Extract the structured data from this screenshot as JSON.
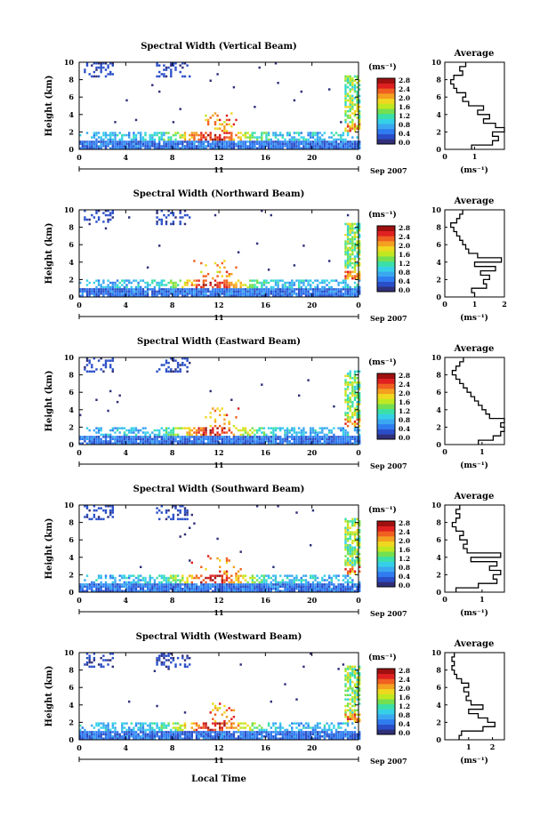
{
  "figure": {
    "xlabel": "Local Time",
    "date_label": "Sep 2007",
    "day_label": "11",
    "unit_label": "(ms⁻¹)",
    "avg_title": "Average",
    "avg_xlabel": "(ms⁻¹)",
    "ylabel": "Height (km)"
  },
  "colorbar": {
    "colors": [
      "#30307a",
      "#2a4ec8",
      "#2f7bf0",
      "#3aa8f0",
      "#35d0e8",
      "#3ae0a8",
      "#74e050",
      "#c0e820",
      "#f0d820",
      "#f4a020",
      "#f06020",
      "#e02020",
      "#a01010"
    ],
    "ticks": [
      "0.0",
      "0.4",
      "0.8",
      "1.2",
      "1.6",
      "2.0",
      "2.4",
      "2.8"
    ],
    "range": [
      0,
      2.8
    ]
  },
  "chart_data": [
    {
      "type": "heatmap",
      "title": "Spectral Width (Vertical Beam)",
      "x_ticks": [
        "0",
        "4",
        "8",
        "12",
        "16",
        "20",
        "0"
      ],
      "xlim": [
        0,
        24
      ],
      "y_ticks": [
        "0",
        "2",
        "4",
        "6",
        "8",
        "10"
      ],
      "ylim": [
        0,
        10
      ],
      "avg": {
        "x_ticks": [
          "0",
          "1"
        ],
        "xlim": [
          0,
          2
        ],
        "heights": [
          0.25,
          0.75,
          1.25,
          1.75,
          2.25,
          2.75,
          3.25,
          3.75,
          4.25,
          4.75,
          5.25,
          5.75,
          6.25,
          6.75,
          7.25,
          7.75,
          8.25,
          8.75,
          9.25,
          9.75
        ],
        "values": [
          0.9,
          1.6,
          1.8,
          1.6,
          2.0,
          1.7,
          1.3,
          1.5,
          1.1,
          1.3,
          0.8,
          0.6,
          0.7,
          0.4,
          0.3,
          0.2,
          0.3,
          0.6,
          0.5,
          0.7
        ]
      }
    },
    {
      "type": "heatmap",
      "title": "Spectral Width (Northward Beam)",
      "x_ticks": [
        "0",
        "4",
        "8",
        "12",
        "16",
        "20",
        "0"
      ],
      "xlim": [
        0,
        24
      ],
      "y_ticks": [
        "0",
        "2",
        "4",
        "6",
        "8",
        "10"
      ],
      "ylim": [
        0,
        10
      ],
      "avg": {
        "x_ticks": [
          "0",
          "1",
          "2"
        ],
        "xlim": [
          0,
          2
        ],
        "heights": [
          0.25,
          0.75,
          1.25,
          1.75,
          2.25,
          2.75,
          3.25,
          3.75,
          4.25,
          4.75,
          5.25,
          5.75,
          6.25,
          6.75,
          7.25,
          7.75,
          8.25,
          8.75,
          9.25,
          9.75
        ],
        "values": [
          1.0,
          0.9,
          1.4,
          1.3,
          1.5,
          1.2,
          1.7,
          1.0,
          1.9,
          1.1,
          0.8,
          0.7,
          0.6,
          0.5,
          0.4,
          0.3,
          0.2,
          0.4,
          0.5,
          0.6
        ]
      }
    },
    {
      "type": "heatmap",
      "title": "Spectral Width (Eastward Beam)",
      "x_ticks": [
        "0",
        "4",
        "8",
        "12",
        "16",
        "20",
        "0"
      ],
      "xlim": [
        0,
        24
      ],
      "y_ticks": [
        "0",
        "2",
        "4",
        "6",
        "8",
        "10"
      ],
      "ylim": [
        0,
        10
      ],
      "avg": {
        "x_ticks": [
          "0",
          "1"
        ],
        "xlim": [
          0,
          1.6
        ],
        "heights": [
          0.25,
          0.75,
          1.25,
          1.75,
          2.25,
          2.75,
          3.25,
          3.75,
          4.25,
          4.75,
          5.25,
          5.75,
          6.25,
          6.75,
          7.25,
          7.75,
          8.25,
          8.75,
          9.25,
          9.75
        ],
        "values": [
          0.9,
          1.3,
          1.5,
          1.6,
          1.5,
          1.6,
          1.2,
          1.1,
          1.0,
          0.9,
          0.8,
          0.7,
          0.6,
          0.5,
          0.4,
          0.3,
          0.2,
          0.3,
          0.4,
          0.5
        ]
      }
    },
    {
      "type": "heatmap",
      "title": "Spectral Width (Southward Beam)",
      "x_ticks": [
        "0",
        "4",
        "8",
        "12",
        "16",
        "20",
        "0"
      ],
      "xlim": [
        0,
        24
      ],
      "y_ticks": [
        "0",
        "2",
        "4",
        "6",
        "8",
        "10"
      ],
      "ylim": [
        0,
        10
      ],
      "avg": {
        "x_ticks": [
          "0",
          "1"
        ],
        "xlim": [
          0,
          1.6
        ],
        "heights": [
          0.25,
          0.75,
          1.25,
          1.75,
          2.25,
          2.75,
          3.25,
          3.75,
          4.25,
          4.75,
          5.25,
          5.75,
          6.25,
          6.75,
          7.25,
          7.75,
          8.25,
          8.75,
          9.25,
          9.75
        ],
        "values": [
          0.3,
          0.9,
          1.4,
          1.3,
          1.5,
          1.2,
          1.4,
          0.7,
          1.5,
          0.6,
          0.5,
          0.6,
          0.4,
          0.5,
          0.3,
          0.2,
          0.3,
          0.4,
          0.3,
          0.4
        ]
      }
    },
    {
      "type": "heatmap",
      "title": "Spectral Width (Westward Beam)",
      "x_ticks": [
        "0",
        "4",
        "8",
        "12",
        "16",
        "20",
        "0"
      ],
      "xlim": [
        0,
        24
      ],
      "y_ticks": [
        "0",
        "2",
        "4",
        "6",
        "8",
        "10"
      ],
      "ylim": [
        0,
        10
      ],
      "avg": {
        "x_ticks": [
          "1",
          "2"
        ],
        "xlim": [
          0,
          2.5
        ],
        "heights": [
          0.25,
          0.75,
          1.25,
          1.75,
          2.25,
          2.75,
          3.25,
          3.75,
          4.25,
          4.75,
          5.25,
          5.75,
          6.25,
          6.75,
          7.25,
          7.75,
          8.25,
          8.75,
          9.25,
          9.75
        ],
        "values": [
          0.6,
          0.7,
          1.6,
          2.1,
          1.8,
          1.4,
          1.0,
          1.6,
          1.1,
          0.9,
          1.0,
          0.8,
          1.0,
          0.7,
          0.5,
          0.4,
          0.3,
          0.4,
          0.3,
          0.4
        ]
      }
    }
  ]
}
